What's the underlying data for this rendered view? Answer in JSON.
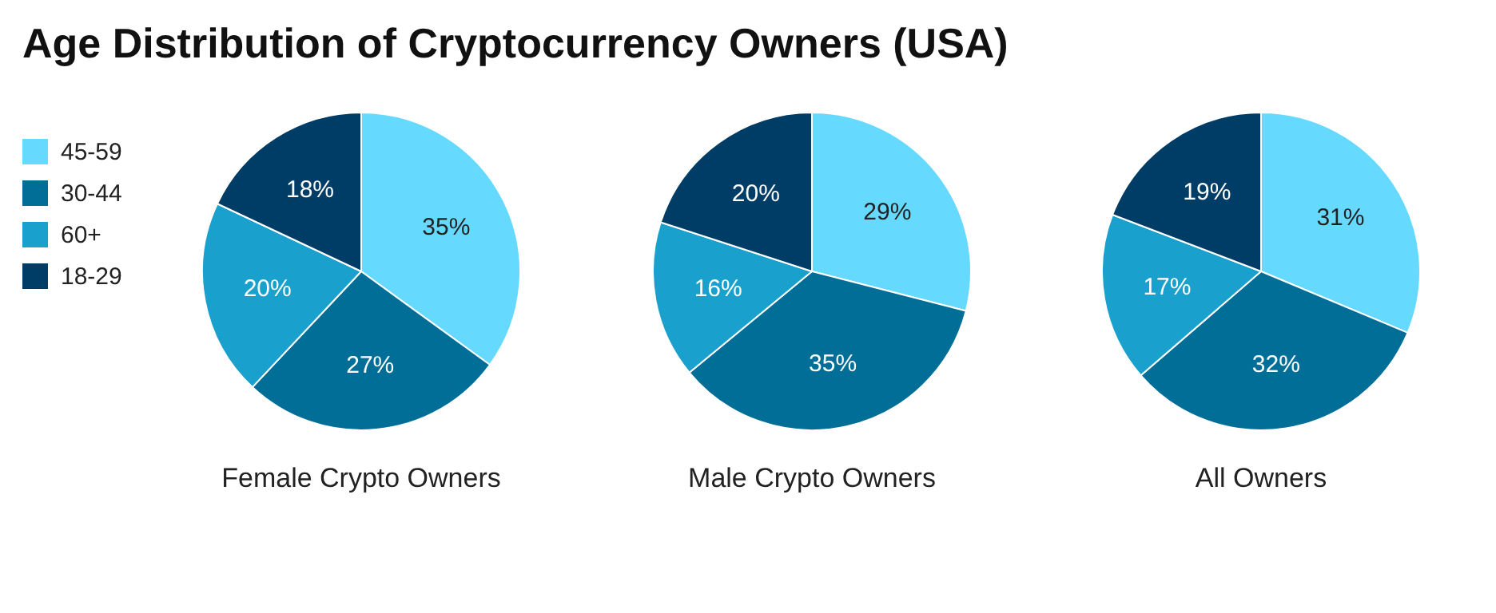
{
  "chart_data": [
    {
      "type": "pie",
      "title": "Age Distribution of Cryptocurrency Owners (USA)",
      "xlabel": "Female Crypto Owners",
      "legend": "left",
      "categories": [
        "45-59",
        "30-44",
        "60+",
        "18-29"
      ],
      "values": [
        35,
        27,
        20,
        18
      ],
      "value_labels": [
        "35%",
        "27%",
        "20%",
        "18%"
      ],
      "colors": [
        "#66d9ff",
        "#006e96",
        "#19a0cc",
        "#003d66"
      ]
    },
    {
      "type": "pie",
      "xlabel": "Male Crypto Owners",
      "categories": [
        null,
        null,
        null,
        null
      ],
      "values": [
        29,
        35,
        16,
        20
      ],
      "value_labels": [
        "29%",
        "35%",
        "16%",
        "20%"
      ],
      "colors": [
        "#66d9ff",
        "#006e96",
        "#19a0cc",
        "#003d66"
      ]
    },
    {
      "type": "pie",
      "xlabel": "All Owners",
      "categories": [
        null,
        null,
        null,
        null
      ],
      "values": [
        31,
        32,
        17,
        19
      ],
      "value_labels": [
        "31%",
        "32%",
        "17%",
        "19%"
      ],
      "colors": [
        "#66d9ff",
        "#006e96",
        "#19a0cc",
        "#003d66"
      ]
    }
  ]
}
